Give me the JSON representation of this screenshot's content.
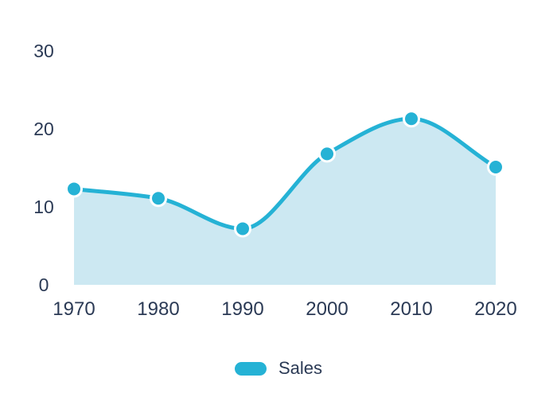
{
  "chart_data": {
    "type": "area",
    "title": "",
    "xlabel": "",
    "ylabel": "",
    "x": [
      1970,
      1980,
      1990,
      2000,
      2010,
      2020
    ],
    "x_tick_labels": [
      "1970",
      "1980",
      "1990",
      "2000",
      "2010",
      "2020"
    ],
    "series": [
      {
        "name": "Sales",
        "values": [
          12.3,
          11.1,
          7.2,
          16.8,
          21.3,
          15.1
        ]
      }
    ],
    "ylim": [
      0,
      30
    ],
    "yticks": [
      0,
      10,
      20,
      30
    ],
    "grid": false,
    "smooth": true,
    "markers": true,
    "legend_position": "bottom",
    "colors": {
      "accent": "#25b2d5",
      "area_fill": "#cce8f2",
      "marker_ring": "#ffffff",
      "tick_text": "#2b3a55",
      "background": "#ffffff"
    }
  }
}
